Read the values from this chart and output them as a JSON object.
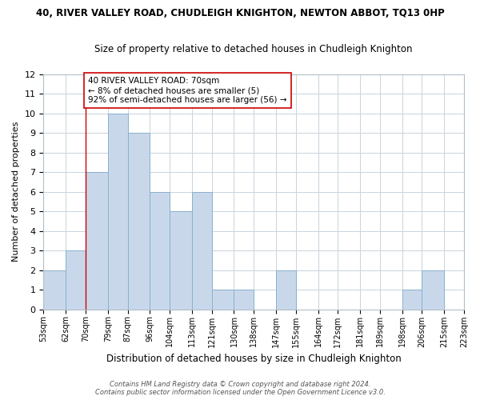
{
  "title": "40, RIVER VALLEY ROAD, CHUDLEIGH KNIGHTON, NEWTON ABBOT, TQ13 0HP",
  "subtitle": "Size of property relative to detached houses in Chudleigh Knighton",
  "xlabel": "Distribution of detached houses by size in Chudleigh Knighton",
  "ylabel": "Number of detached properties",
  "bin_edges": [
    53,
    62,
    70,
    79,
    87,
    96,
    104,
    113,
    121,
    130,
    138,
    147,
    155,
    164,
    172,
    181,
    189,
    198,
    206,
    215,
    223
  ],
  "bin_labels": [
    "53sqm",
    "62sqm",
    "70sqm",
    "79sqm",
    "87sqm",
    "96sqm",
    "104sqm",
    "113sqm",
    "121sqm",
    "130sqm",
    "138sqm",
    "147sqm",
    "155sqm",
    "164sqm",
    "172sqm",
    "181sqm",
    "189sqm",
    "198sqm",
    "206sqm",
    "215sqm",
    "223sqm"
  ],
  "counts": [
    2,
    3,
    7,
    10,
    9,
    6,
    5,
    6,
    1,
    1,
    0,
    2,
    0,
    0,
    0,
    0,
    0,
    1,
    2,
    0
  ],
  "bar_color": "#c8d8ea",
  "bar_edgecolor": "#8ab0cc",
  "property_line_x": 70,
  "property_line_color": "#cc0000",
  "annotation_text": "40 RIVER VALLEY ROAD: 70sqm\n← 8% of detached houses are smaller (5)\n92% of semi-detached houses are larger (56) →",
  "annotation_box_edgecolor": "#cc0000",
  "annotation_box_facecolor": "#ffffff",
  "ylim": [
    0,
    12
  ],
  "yticks": [
    0,
    1,
    2,
    3,
    4,
    5,
    6,
    7,
    8,
    9,
    10,
    11,
    12
  ],
  "footer_line1": "Contains HM Land Registry data © Crown copyright and database right 2024.",
  "footer_line2": "Contains public sector information licensed under the Open Government Licence v3.0.",
  "background_color": "#ffffff",
  "grid_color": "#c8d4de"
}
